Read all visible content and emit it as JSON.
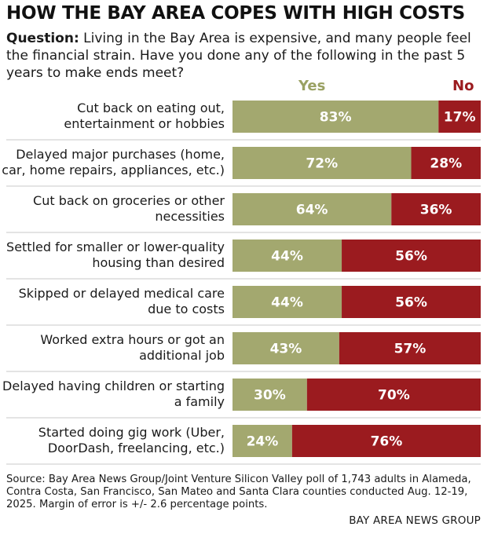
{
  "title": "HOW THE BAY AREA COPES WITH HIGH COSTS",
  "question_label": "Question:",
  "question_text": "Living in the Bay Area is expensive, and many people feel the financial strain. Have you done any of the following in the past 5 years to make ends meet?",
  "source": "Source: Bay Area News Group/Joint Venture Silicon Valley poll of 1,743 adults in Alameda, Contra Costa, San Francisco, San Mateo and Santa Clara counties conducted Aug. 12-19, 2025. Margin of error is +/- 2.6 percentage points.",
  "credit": "BAY AREA NEWS GROUP",
  "colors": {
    "yes": "#a3a86f",
    "no": "#9b1b1f",
    "yes_header": "#9aa163",
    "no_header": "#9b1b1f"
  },
  "chart_data": {
    "type": "bar",
    "orientation": "horizontal",
    "stacked": true,
    "title": "HOW THE BAY AREA COPES WITH HIGH COSTS",
    "xlim": [
      0,
      100
    ],
    "legend": [
      "Yes",
      "No"
    ],
    "categories": [
      [
        "Cut back on eating out,",
        "entertainment or hobbies"
      ],
      [
        "Delayed major purchases (home,",
        "car, home repairs, appliances, etc.)"
      ],
      [
        "Cut back on groceries or other",
        "necessities"
      ],
      [
        "Settled for smaller or lower-quality",
        "housing than desired"
      ],
      [
        "Skipped or delayed medical care",
        "due to costs"
      ],
      [
        "Worked extra hours or got an",
        "additional job"
      ],
      [
        "Delayed having children or starting",
        "a family"
      ],
      [
        "Started doing gig work (Uber,",
        "DoorDash, freelancing, etc.)"
      ]
    ],
    "series": [
      {
        "name": "Yes",
        "values": [
          83,
          72,
          64,
          44,
          44,
          43,
          30,
          24
        ],
        "labels": [
          "83%",
          "72%",
          "64%",
          "44%",
          "44%",
          "43%",
          "30%",
          "24%"
        ]
      },
      {
        "name": "No",
        "values": [
          17,
          28,
          36,
          56,
          56,
          57,
          70,
          76
        ],
        "labels": [
          "17%",
          "28%",
          "36%",
          "56%",
          "56%",
          "57%",
          "70%",
          "76%"
        ]
      }
    ]
  }
}
